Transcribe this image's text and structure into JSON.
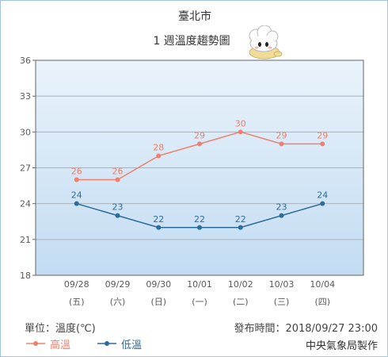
{
  "chart_data": {
    "type": "line",
    "title": "臺北市",
    "subtitle": "1 週溫度趨勢圖",
    "categories": [
      "09/28",
      "09/29",
      "09/30",
      "10/01",
      "10/02",
      "10/03",
      "10/04"
    ],
    "weekdays": [
      "(五)",
      "(六)",
      "(日)",
      "(一)",
      "(二)",
      "(三)",
      "(四)"
    ],
    "series": [
      {
        "name": "高溫",
        "values": [
          26,
          26,
          28,
          29,
          30,
          29,
          29
        ],
        "color": "#ef806b"
      },
      {
        "name": "低溫",
        "values": [
          24,
          23,
          22,
          22,
          22,
          23,
          24
        ],
        "color": "#2c6c9b"
      }
    ],
    "ylim": [
      18,
      36
    ],
    "yticks": [
      18,
      21,
      24,
      27,
      30,
      33,
      36
    ],
    "grid": true,
    "legend": "bottom-left",
    "unit_label": "單位：溫度(℃)"
  },
  "footer": {
    "published": "發布時間：2018/09/27 23:00",
    "credit": "中央氣象局製作"
  }
}
